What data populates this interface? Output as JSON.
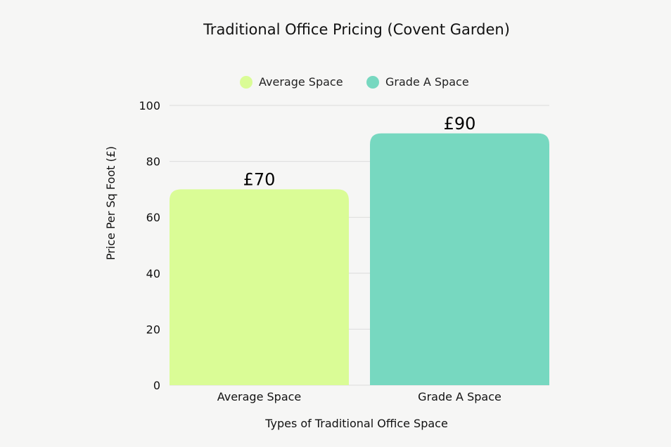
{
  "chart_data": {
    "type": "bar",
    "title": "Traditional Office Pricing (Covent Garden)",
    "categories": [
      "Average Space",
      "Grade A Space"
    ],
    "values": [
      70,
      90
    ],
    "data_labels": [
      "£70",
      "£90"
    ],
    "xlabel": "Types of Traditional Office Space",
    "ylabel": "Price Per Sq Foot (£)",
    "ylim": [
      0,
      100
    ],
    "yticks": [
      0,
      20,
      40,
      60,
      80,
      100
    ],
    "grid": true,
    "legend_position": "top-center",
    "legend": [
      {
        "label": "Average Space",
        "color": "#dafc96"
      },
      {
        "label": "Grade A Space",
        "color": "#77d8c0"
      }
    ],
    "colors": [
      "#dafc96",
      "#77d8c0"
    ]
  }
}
